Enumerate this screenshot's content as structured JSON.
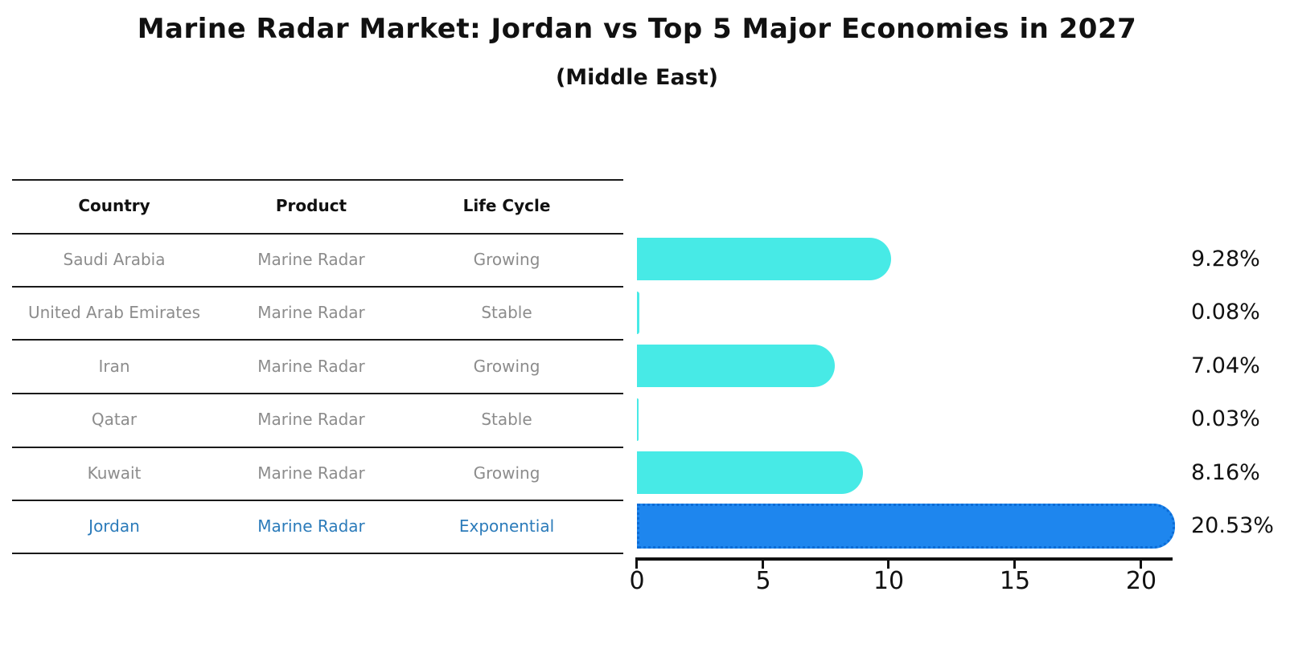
{
  "title": "Marine Radar Market: Jordan vs Top 5 Major Economies in 2027",
  "subtitle": "(Middle East)",
  "table": {
    "headers": {
      "country": "Country",
      "product": "Product",
      "life_cycle": "Life Cycle"
    },
    "rows": [
      {
        "country": "Saudi Arabia",
        "product": "Marine Radar",
        "life_cycle": "Growing",
        "highlight": false
      },
      {
        "country": "United Arab Emirates",
        "product": "Marine Radar",
        "life_cycle": "Stable",
        "highlight": false
      },
      {
        "country": "Iran",
        "product": "Marine Radar",
        "life_cycle": "Growing",
        "highlight": false
      },
      {
        "country": "Qatar",
        "product": "Marine Radar",
        "life_cycle": "Stable",
        "highlight": false
      },
      {
        "country": "Kuwait",
        "product": "Marine Radar",
        "life_cycle": "Growing",
        "highlight": false
      },
      {
        "country": "Jordan",
        "product": "Marine Radar",
        "life_cycle": "Exponential",
        "highlight": true
      }
    ]
  },
  "chart_data": {
    "type": "bar",
    "orientation": "horizontal",
    "title": "Marine Radar Market: Jordan vs Top 5 Major Economies in 2027",
    "subtitle": "(Middle East)",
    "categories": [
      "Saudi Arabia",
      "United Arab Emirates",
      "Iran",
      "Qatar",
      "Kuwait",
      "Jordan"
    ],
    "values": [
      9.28,
      0.08,
      7.04,
      0.03,
      8.16,
      20.53
    ],
    "value_labels": [
      "9.28%",
      "0.08%",
      "7.04%",
      "0.03%",
      "8.16%",
      "20.53%"
    ],
    "unit": "%",
    "x_ticks": [
      0,
      5,
      10,
      15,
      20
    ],
    "x_tick_labels": [
      "0",
      "5",
      "10",
      "15",
      "20"
    ],
    "xlim": [
      0,
      21
    ],
    "grid": false,
    "legend": "none",
    "highlight_index": 5,
    "bar_color": "#47eae6",
    "highlight_bar_color": "#1e86ee",
    "highlight_border_color": "#0c6cd6",
    "highlight_text_color": "#2b7bba",
    "text_color": "#111111",
    "muted_text_color": "#8c8c8c"
  }
}
